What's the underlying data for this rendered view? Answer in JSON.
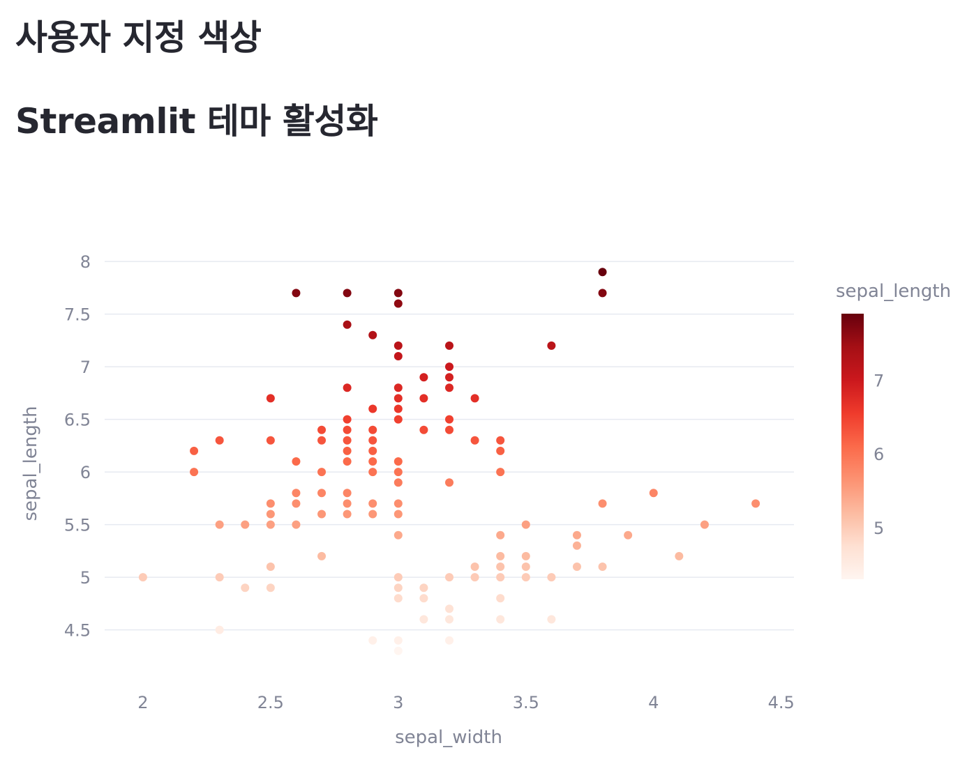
{
  "page": {
    "title": "사용자 지정 색상",
    "subtitle": "Streamlit 테마 활성화"
  },
  "colors": {
    "text": "#262730",
    "axis_text": "#808495",
    "grid": "#e6eaf1",
    "colorscale": [
      "#fff5f0",
      "#fee0d2",
      "#fcbba1",
      "#fc9272",
      "#fb6a4a",
      "#ef3b2c",
      "#cb181d",
      "#a50f15",
      "#67000d"
    ]
  },
  "chart_data": {
    "type": "scatter",
    "xlabel": "sepal_width",
    "ylabel": "sepal_length",
    "xlim": [
      1.85,
      4.55
    ],
    "ylim": [
      4.1,
      8.1
    ],
    "x_ticks": [
      "2",
      "2.5",
      "3",
      "3.5",
      "4",
      "4.5"
    ],
    "y_ticks": [
      "4.5",
      "5",
      "5.5",
      "6",
      "6.5",
      "7",
      "7.5",
      "8"
    ],
    "colorbar": {
      "title": "sepal_length",
      "range": [
        4.3,
        7.9
      ],
      "ticks": [
        "5",
        "6",
        "7"
      ]
    },
    "points": [
      [
        2.0,
        5.0
      ],
      [
        2.2,
        6.0
      ],
      [
        2.2,
        6.2
      ],
      [
        2.3,
        4.5
      ],
      [
        2.3,
        5.0
      ],
      [
        2.3,
        5.5
      ],
      [
        2.3,
        6.3
      ],
      [
        2.4,
        4.9
      ],
      [
        2.4,
        5.5
      ],
      [
        2.5,
        4.9
      ],
      [
        2.5,
        5.1
      ],
      [
        2.5,
        5.5
      ],
      [
        2.5,
        5.6
      ],
      [
        2.5,
        5.7
      ],
      [
        2.5,
        6.3
      ],
      [
        2.5,
        6.7
      ],
      [
        2.6,
        5.5
      ],
      [
        2.6,
        5.7
      ],
      [
        2.6,
        5.8
      ],
      [
        2.6,
        6.1
      ],
      [
        2.6,
        7.7
      ],
      [
        2.7,
        5.2
      ],
      [
        2.7,
        5.6
      ],
      [
        2.7,
        5.8
      ],
      [
        2.7,
        6.0
      ],
      [
        2.7,
        6.3
      ],
      [
        2.7,
        6.4
      ],
      [
        2.8,
        5.6
      ],
      [
        2.8,
        5.7
      ],
      [
        2.8,
        5.8
      ],
      [
        2.8,
        6.1
      ],
      [
        2.8,
        6.2
      ],
      [
        2.8,
        6.3
      ],
      [
        2.8,
        6.4
      ],
      [
        2.8,
        6.5
      ],
      [
        2.8,
        6.8
      ],
      [
        2.8,
        7.4
      ],
      [
        2.8,
        7.7
      ],
      [
        2.9,
        4.4
      ],
      [
        2.9,
        5.6
      ],
      [
        2.9,
        5.7
      ],
      [
        2.9,
        6.0
      ],
      [
        2.9,
        6.1
      ],
      [
        2.9,
        6.2
      ],
      [
        2.9,
        6.3
      ],
      [
        2.9,
        6.4
      ],
      [
        2.9,
        6.6
      ],
      [
        2.9,
        7.3
      ],
      [
        3.0,
        4.3
      ],
      [
        3.0,
        4.4
      ],
      [
        3.0,
        4.8
      ],
      [
        3.0,
        4.9
      ],
      [
        3.0,
        5.0
      ],
      [
        3.0,
        5.4
      ],
      [
        3.0,
        5.6
      ],
      [
        3.0,
        5.7
      ],
      [
        3.0,
        5.9
      ],
      [
        3.0,
        6.0
      ],
      [
        3.0,
        6.1
      ],
      [
        3.0,
        6.5
      ],
      [
        3.0,
        6.6
      ],
      [
        3.0,
        6.7
      ],
      [
        3.0,
        6.8
      ],
      [
        3.0,
        7.1
      ],
      [
        3.0,
        7.2
      ],
      [
        3.0,
        7.6
      ],
      [
        3.0,
        7.7
      ],
      [
        3.1,
        4.6
      ],
      [
        3.1,
        4.8
      ],
      [
        3.1,
        4.9
      ],
      [
        3.1,
        6.4
      ],
      [
        3.1,
        6.7
      ],
      [
        3.1,
        6.9
      ],
      [
        3.2,
        4.4
      ],
      [
        3.2,
        4.6
      ],
      [
        3.2,
        4.7
      ],
      [
        3.2,
        5.0
      ],
      [
        3.2,
        5.9
      ],
      [
        3.2,
        6.4
      ],
      [
        3.2,
        6.5
      ],
      [
        3.2,
        6.8
      ],
      [
        3.2,
        6.9
      ],
      [
        3.2,
        7.0
      ],
      [
        3.2,
        7.2
      ],
      [
        3.3,
        5.0
      ],
      [
        3.3,
        5.1
      ],
      [
        3.3,
        6.3
      ],
      [
        3.3,
        6.7
      ],
      [
        3.4,
        4.6
      ],
      [
        3.4,
        4.8
      ],
      [
        3.4,
        5.0
      ],
      [
        3.4,
        5.1
      ],
      [
        3.4,
        5.2
      ],
      [
        3.4,
        5.4
      ],
      [
        3.4,
        6.0
      ],
      [
        3.4,
        6.2
      ],
      [
        3.4,
        6.3
      ],
      [
        3.5,
        5.0
      ],
      [
        3.5,
        5.1
      ],
      [
        3.5,
        5.2
      ],
      [
        3.5,
        5.5
      ],
      [
        3.6,
        4.6
      ],
      [
        3.6,
        5.0
      ],
      [
        3.6,
        7.2
      ],
      [
        3.7,
        5.1
      ],
      [
        3.7,
        5.3
      ],
      [
        3.7,
        5.4
      ],
      [
        3.8,
        5.1
      ],
      [
        3.8,
        5.7
      ],
      [
        3.8,
        7.7
      ],
      [
        3.8,
        7.9
      ],
      [
        3.9,
        5.4
      ],
      [
        4.0,
        5.8
      ],
      [
        4.1,
        5.2
      ],
      [
        4.2,
        5.5
      ],
      [
        4.4,
        5.7
      ]
    ]
  }
}
